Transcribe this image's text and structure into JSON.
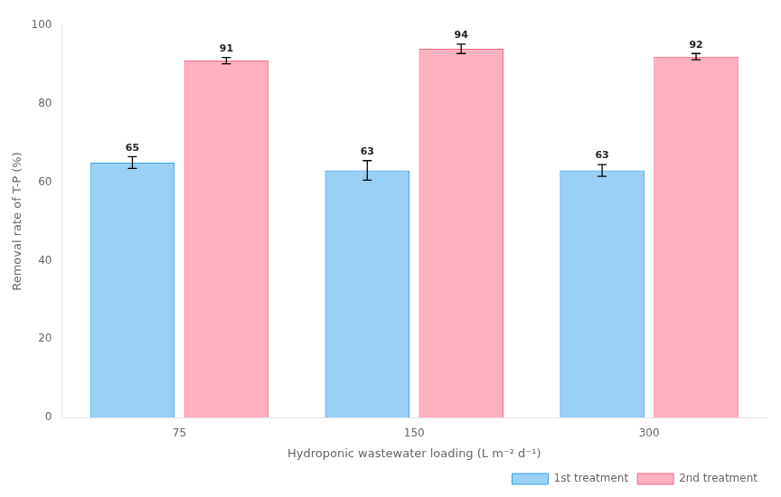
{
  "chart_data": {
    "type": "bar",
    "xlabel": "Hydroponic wastewater loading (L m⁻² d⁻¹)",
    "ylabel": "Removal rate of T-P (%)",
    "categories": [
      "75",
      "150",
      "300"
    ],
    "series": [
      {
        "name": "1st treatment",
        "values": [
          65,
          63,
          63
        ],
        "errors": [
          1.5,
          2.5,
          1.5
        ]
      },
      {
        "name": "2nd treatment",
        "values": [
          91,
          94,
          92
        ],
        "errors": [
          0.8,
          1.2,
          0.8
        ]
      }
    ],
    "ylim": [
      0,
      100
    ],
    "yticks": [
      0,
      20,
      40,
      60,
      80,
      100
    ],
    "grid": false,
    "legend": "lower right",
    "data_labels": true
  }
}
